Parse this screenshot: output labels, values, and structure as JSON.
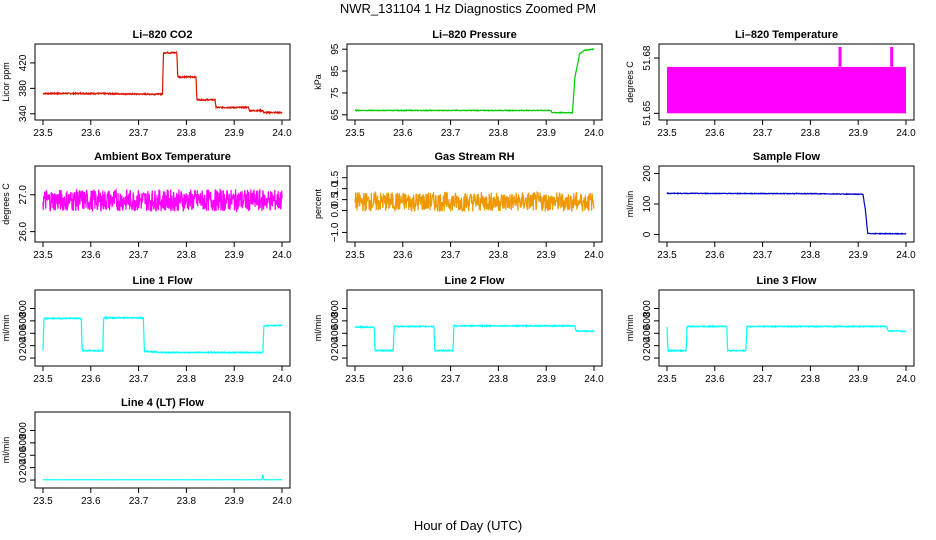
{
  "figure": {
    "title": "NWR_131104  1 Hz Diagnostics Zoomed PM",
    "xlabel": "Hour of Day (UTC)"
  },
  "chart_data": [
    {
      "type": "line",
      "title": "Li–820 CO2",
      "ylabel": "Licor ppm",
      "color": "#dd1100",
      "xlim": [
        23.5,
        24.0
      ],
      "ylim": [
        335,
        445
      ],
      "xticks": [
        "23.5",
        "23.6",
        "23.7",
        "23.8",
        "23.9",
        "24.0"
      ],
      "yticks": [
        {
          "v": 340,
          "label": "340"
        },
        {
          "v": 380,
          "label": "380"
        },
        {
          "v": 420,
          "label": "420"
        }
      ],
      "series": [
        {
          "x": [
            23.5,
            23.6,
            23.7,
            23.75,
            23.752,
            23.78,
            23.782,
            23.82,
            23.822,
            23.86,
            23.862,
            23.93,
            23.932,
            23.96,
            23.962,
            24.0
          ],
          "y": [
            372,
            372,
            371,
            371,
            436,
            436,
            398,
            398,
            362,
            362,
            350,
            350,
            345,
            345,
            342,
            342
          ],
          "noise": 1
        }
      ]
    },
    {
      "type": "line",
      "title": "Li–820 Pressure",
      "ylabel": "kPa",
      "color": "#00cc00",
      "xlim": [
        23.5,
        24.0
      ],
      "ylim": [
        64,
        96
      ],
      "xticks": [
        "23.5",
        "23.6",
        "23.7",
        "23.8",
        "23.9",
        "24.0"
      ],
      "yticks": [
        {
          "v": 65,
          "label": "65"
        },
        {
          "v": 75,
          "label": "75"
        },
        {
          "v": 85,
          "label": "85"
        },
        {
          "v": 95,
          "label": "95"
        }
      ],
      "series": [
        {
          "x": [
            23.5,
            23.91,
            23.912,
            23.955,
            23.96,
            23.97,
            23.98,
            24.0
          ],
          "y": [
            67,
            67,
            66,
            66,
            82,
            93,
            94.5,
            95
          ],
          "noise": 0.15
        }
      ]
    },
    {
      "type": "line",
      "title": "Li–820 Temperature",
      "ylabel": "degrees C",
      "color": "#ff00ff",
      "xlim": [
        23.5,
        24.0
      ],
      "ylim": [
        51.648,
        51.686
      ],
      "xticks": [
        "23.5",
        "23.6",
        "23.7",
        "23.8",
        "23.9",
        "24.0"
      ],
      "yticks": [
        {
          "v": 51.65,
          "label": "51.65"
        },
        {
          "v": 51.68,
          "label": "51.68"
        }
      ],
      "series": [
        {
          "x": [
            23.5,
            24.0
          ],
          "y": [
            51.6644,
            51.6644
          ],
          "noise": 8,
          "band": [
            51.65,
            51.6752
          ],
          "spikes": [
            {
              "x": 23.862,
              "y": 51.686
            },
            {
              "x": 23.97,
              "y": 51.686
            }
          ]
        }
      ]
    },
    {
      "type": "line",
      "title": "Ambient Box Temperature",
      "ylabel": "degrees C",
      "color": "#ff00ff",
      "xlim": [
        23.5,
        24.0
      ],
      "ylim": [
        25.8,
        27.7
      ],
      "xticks": [
        "23.5",
        "23.6",
        "23.7",
        "23.8",
        "23.9",
        "24.0"
      ],
      "yticks": [
        {
          "v": 26,
          "label": "26.0"
        },
        {
          "v": 27,
          "label": "27.0"
        }
      ],
      "series": [
        {
          "x": [
            23.5,
            24.0
          ],
          "y": [
            26.85,
            26.85
          ],
          "noise": 0.3
        }
      ]
    },
    {
      "type": "line",
      "title": "Gas Stream RH",
      "ylabel": "percent",
      "color": "#ee9900",
      "xlim": [
        23.5,
        24.0
      ],
      "ylim": [
        -1.3,
        1.9
      ],
      "xticks": [
        "23.5",
        "23.6",
        "23.7",
        "23.8",
        "23.9",
        "24.0"
      ],
      "yticks": [
        {
          "v": -1,
          "label": "−1.0"
        },
        {
          "v": 0,
          "label": "0.0"
        },
        {
          "v": 0.5,
          "label": "0.5"
        },
        {
          "v": 1,
          "label": "1.0"
        },
        {
          "v": 1.5,
          "label": "1.5"
        }
      ],
      "series": [
        {
          "x": [
            23.5,
            24.0
          ],
          "y": [
            0.4,
            0.4
          ],
          "noise": 0.45
        }
      ]
    },
    {
      "type": "line",
      "title": "Sample Flow",
      "ylabel": "ml/min",
      "color": "#0000cc",
      "xlim": [
        23.5,
        24.0
      ],
      "ylim": [
        -15,
        215
      ],
      "xticks": [
        "23.5",
        "23.6",
        "23.7",
        "23.8",
        "23.9",
        "24.0"
      ],
      "yticks": [
        {
          "v": 0,
          "label": "0"
        },
        {
          "v": 100,
          "label": "100"
        },
        {
          "v": 200,
          "label": "200"
        }
      ],
      "series": [
        {
          "x": [
            23.5,
            23.8,
            23.91,
            23.915,
            23.92,
            24.0
          ],
          "y": [
            135,
            134,
            132,
            80,
            3,
            2
          ],
          "noise": 1
        }
      ]
    },
    {
      "type": "line",
      "title": "Line 1 Flow",
      "ylabel": "ml/min",
      "color": "#00ffff",
      "xlim": [
        23.5,
        24.0
      ],
      "ylim": [
        -80,
        1050
      ],
      "xticks": [
        "23.5",
        "23.6",
        "23.7",
        "23.8",
        "23.9",
        "24.0"
      ],
      "yticks": [
        {
          "v": 0,
          "label": "0"
        },
        {
          "v": 200,
          "label": "200"
        },
        {
          "v": 400,
          "label": "400"
        },
        {
          "v": 600,
          "label": "600"
        },
        {
          "v": 800,
          "label": "800"
        }
      ],
      "series": [
        {
          "x": [
            23.5,
            23.502,
            23.58,
            23.582,
            23.625,
            23.627,
            23.71,
            23.712,
            23.75,
            23.96,
            23.962,
            24.0
          ],
          "y": [
            120,
            640,
            640,
            120,
            120,
            650,
            650,
            110,
            90,
            90,
            520,
            530
          ],
          "noise": 8
        }
      ]
    },
    {
      "type": "line",
      "title": "Line 2 Flow",
      "ylabel": "ml/min",
      "color": "#00ffff",
      "xlim": [
        23.5,
        24.0
      ],
      "ylim": [
        -80,
        1050
      ],
      "xticks": [
        "23.5",
        "23.6",
        "23.7",
        "23.8",
        "23.9",
        "24.0"
      ],
      "yticks": [
        {
          "v": 0,
          "label": "0"
        },
        {
          "v": 200,
          "label": "200"
        },
        {
          "v": 400,
          "label": "400"
        },
        {
          "v": 600,
          "label": "600"
        },
        {
          "v": 800,
          "label": "800"
        }
      ],
      "series": [
        {
          "x": [
            23.5,
            23.54,
            23.542,
            23.58,
            23.582,
            23.665,
            23.667,
            23.705,
            23.707,
            23.96,
            23.962,
            24.0
          ],
          "y": [
            500,
            500,
            120,
            120,
            510,
            510,
            120,
            120,
            520,
            520,
            440,
            430
          ],
          "noise": 8
        }
      ]
    },
    {
      "type": "line",
      "title": "Line 3 Flow",
      "ylabel": "ml/min",
      "color": "#00ffff",
      "xlim": [
        23.5,
        24.0
      ],
      "ylim": [
        -80,
        1050
      ],
      "xticks": [
        "23.5",
        "23.6",
        "23.7",
        "23.8",
        "23.9",
        "24.0"
      ],
      "yticks": [
        {
          "v": 0,
          "label": "0"
        },
        {
          "v": 200,
          "label": "200"
        },
        {
          "v": 400,
          "label": "400"
        },
        {
          "v": 600,
          "label": "600"
        },
        {
          "v": 800,
          "label": "800"
        }
      ],
      "series": [
        {
          "x": [
            23.5,
            23.502,
            23.54,
            23.542,
            23.625,
            23.627,
            23.665,
            23.667,
            23.96,
            23.962,
            24.0
          ],
          "y": [
            500,
            120,
            120,
            510,
            510,
            120,
            120,
            510,
            510,
            440,
            430
          ],
          "noise": 8
        }
      ]
    },
    {
      "type": "line",
      "title": "Line 4 (LT) Flow",
      "ylabel": "ml/min",
      "color": "#00ffff",
      "xlim": [
        23.5,
        24.0
      ],
      "ylim": [
        -80,
        1050
      ],
      "xticks": [
        "23.5",
        "23.6",
        "23.7",
        "23.8",
        "23.9",
        "24.0"
      ],
      "yticks": [
        {
          "v": 0,
          "label": "0"
        },
        {
          "v": 200,
          "label": "200"
        },
        {
          "v": 400,
          "label": "400"
        },
        {
          "v": 600,
          "label": "600"
        },
        {
          "v": 800,
          "label": "800"
        }
      ],
      "series": [
        {
          "x": [
            23.5,
            23.958,
            23.96,
            23.962,
            23.964,
            24.0
          ],
          "y": [
            5,
            5,
            80,
            10,
            5,
            5
          ],
          "noise": 1
        }
      ]
    }
  ]
}
